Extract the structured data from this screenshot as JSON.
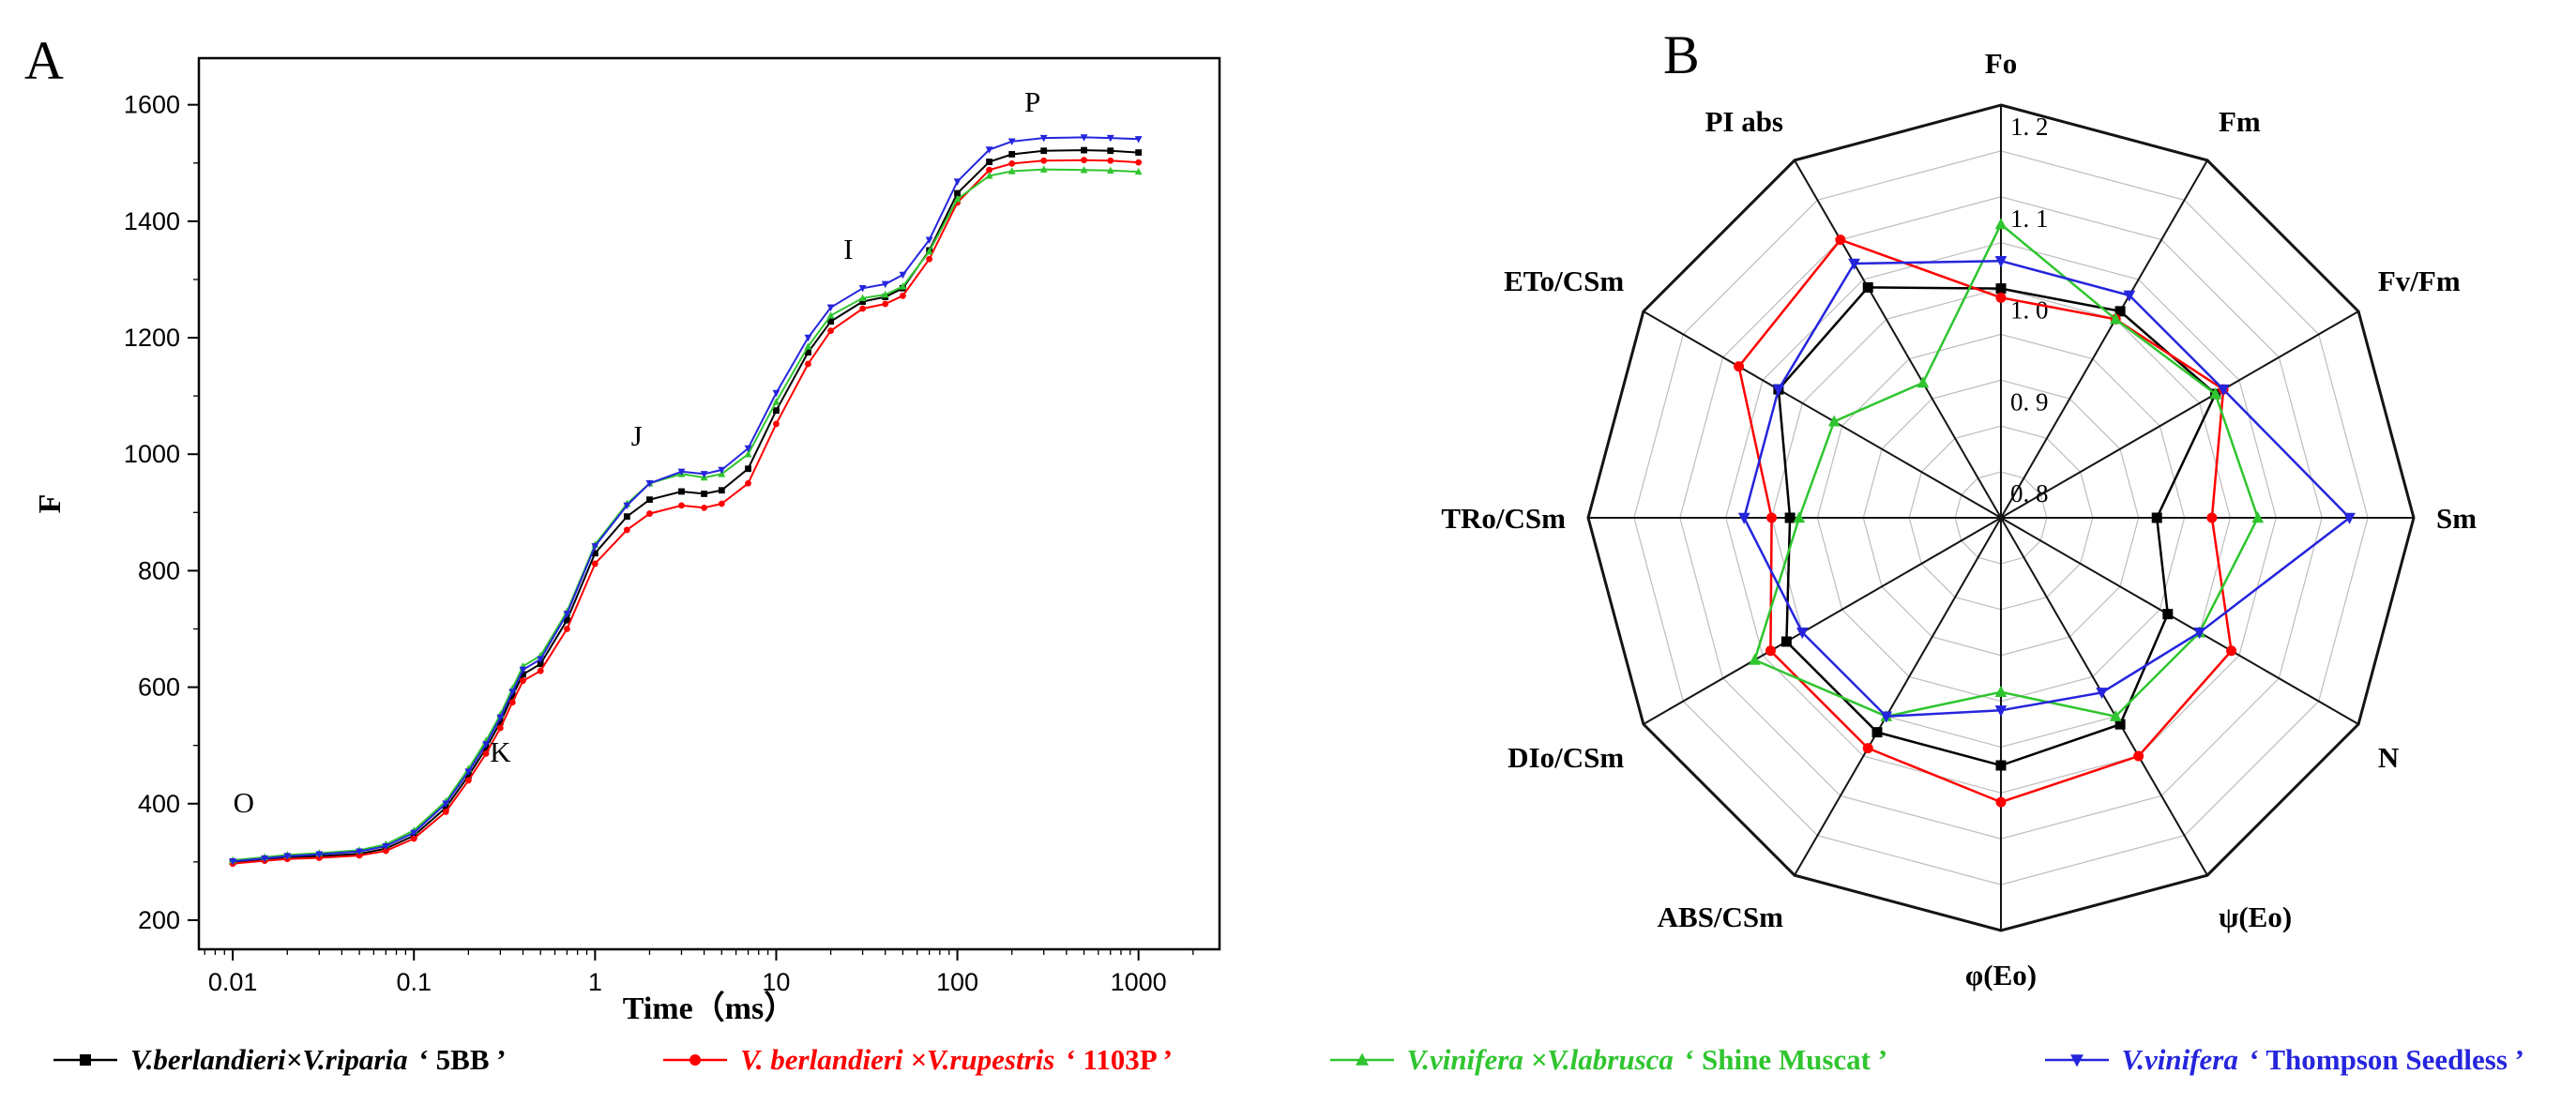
{
  "figure": {
    "panel_a_label": "A",
    "panel_b_label": "B"
  },
  "colors": {
    "series": [
      "#000000",
      "#fe0000",
      "#2fc52f",
      "#2525dd"
    ]
  },
  "legend": [
    {
      "species": "V.berlandieri×V.riparia",
      "cultivar": "‘ 5BB ’",
      "color": "#000000",
      "marker": "square"
    },
    {
      "species": "V. berlandieri ×V.rupestris",
      "cultivar": "‘ 1103P ’",
      "color": "#fe0000",
      "marker": "circle"
    },
    {
      "species": "V.vinifera ×V.labrusca",
      "cultivar": "‘ Shine Muscat ’",
      "color": "#2fc52f",
      "marker": "triangle-up"
    },
    {
      "species": "V.vinifera",
      "cultivar": "‘ Thompson Seedless ’",
      "color": "#2525dd",
      "marker": "triangle-down"
    }
  ],
  "chart_data": [
    {
      "type": "line",
      "title": "OJIP fluorescence transient",
      "xlabel": "Time（ms）",
      "ylabel": "F",
      "xscale": "log",
      "xlim": [
        0.0065,
        2800
      ],
      "ylim": [
        150,
        1680
      ],
      "xticks": [
        0.01,
        0.1,
        1,
        10,
        100,
        1000
      ],
      "xtick_labels": [
        "0.01",
        "0.1",
        "1",
        "10",
        "100",
        "1000"
      ],
      "yticks": [
        200,
        400,
        600,
        800,
        1000,
        1200,
        1400,
        1600
      ],
      "x": [
        0.01,
        0.015,
        0.02,
        0.03,
        0.05,
        0.07,
        0.1,
        0.15,
        0.2,
        0.25,
        0.3,
        0.35,
        0.4,
        0.5,
        0.7,
        1,
        1.5,
        2,
        3,
        4,
        5,
        7,
        10,
        15,
        20,
        30,
        40,
        50,
        70,
        100,
        150,
        200,
        300,
        500,
        700,
        1000
      ],
      "series": [
        {
          "name": "V.berlandieri×V.riparia ‘5BB’",
          "color": "#000000",
          "marker": "square",
          "values": [
            300,
            305,
            308,
            310,
            314,
            323,
            345,
            393,
            448,
            495,
            540,
            585,
            622,
            640,
            715,
            830,
            893,
            922,
            936,
            932,
            938,
            975,
            1075,
            1175,
            1228,
            1262,
            1270,
            1285,
            1350,
            1448,
            1502,
            1515,
            1521,
            1522,
            1521,
            1518
          ]
        },
        {
          "name": "V. berlandieri ×V.rupestris ‘1103P’",
          "color": "#fe0000",
          "marker": "circle",
          "values": [
            297,
            302,
            305,
            307,
            311,
            319,
            340,
            386,
            440,
            486,
            530,
            574,
            611,
            628,
            700,
            812,
            870,
            898,
            912,
            908,
            915,
            950,
            1052,
            1155,
            1212,
            1250,
            1258,
            1272,
            1335,
            1432,
            1488,
            1499,
            1504,
            1505,
            1504,
            1501
          ]
        },
        {
          "name": "V.vinifera ×V.labrusca ‘Shine Muscat’",
          "color": "#2fc52f",
          "marker": "triangle-up",
          "values": [
            303,
            308,
            312,
            315,
            320,
            330,
            354,
            404,
            460,
            508,
            553,
            598,
            636,
            654,
            730,
            845,
            915,
            950,
            966,
            960,
            966,
            1000,
            1090,
            1185,
            1238,
            1268,
            1274,
            1288,
            1348,
            1438,
            1478,
            1486,
            1489,
            1488,
            1487,
            1485
          ]
        },
        {
          "name": "V.vinifera ‘Thompson Seedless’",
          "color": "#2525dd",
          "marker": "triangle-down",
          "values": [
            301,
            306,
            310,
            313,
            318,
            327,
            350,
            400,
            455,
            502,
            548,
            592,
            630,
            648,
            726,
            842,
            912,
            950,
            970,
            966,
            973,
            1010,
            1105,
            1200,
            1252,
            1285,
            1292,
            1308,
            1368,
            1468,
            1523,
            1537,
            1543,
            1544,
            1543,
            1541
          ]
        }
      ],
      "annotations": [
        {
          "text": "O",
          "x": 0.0115,
          "y": 385
        },
        {
          "text": "K",
          "x": 0.3,
          "y": 472
        },
        {
          "text": "J",
          "x": 1.7,
          "y": 1015
        },
        {
          "text": "I",
          "x": 25,
          "y": 1335
        },
        {
          "text": "P",
          "x": 260,
          "y": 1588
        }
      ]
    },
    {
      "type": "radar",
      "categories": [
        "Fo",
        "Fm",
        "Fv/Fm",
        "Sm",
        "N",
        "ψ(Eo)",
        "φ(Eo)",
        "ABS/CSm",
        "DIo/CSm",
        "TRo/CSm",
        "ETo/CSm",
        "PI abs"
      ],
      "rmin": 0.75,
      "rmax": 1.2,
      "ring_min": 0.8,
      "ring_step": 0.05,
      "tick_values": [
        0.8,
        0.9,
        1.0,
        1.1,
        1.2
      ],
      "tick_labels": [
        "0. 8",
        "0. 9",
        "1. 0",
        "1. 1",
        "1. 2"
      ],
      "series": [
        {
          "name": "V.berlandieri×V.riparia ‘5BB’",
          "color": "#000000",
          "marker": "square",
          "values": [
            1.0,
            1.01,
            1.02,
            0.92,
            0.96,
            1.01,
            1.02,
            1.02,
            1.02,
            0.98,
            1.03,
            1.04
          ]
        },
        {
          "name": "V. berlandieri ×V.rupestris ‘1103P’",
          "color": "#fe0000",
          "marker": "circle",
          "values": [
            0.99,
            1.0,
            1.03,
            0.98,
            1.04,
            1.05,
            1.06,
            1.04,
            1.04,
            1.0,
            1.08,
            1.1
          ]
        },
        {
          "name": "V.vinifera ×V.labrusca ‘Shine Muscat’",
          "color": "#2fc52f",
          "marker": "triangle-up",
          "values": [
            1.07,
            1.0,
            1.02,
            1.03,
            1.0,
            1.0,
            0.94,
            1.0,
            1.06,
            0.97,
            0.96,
            0.92
          ]
        },
        {
          "name": "V.vinifera ‘Thompson Seedless’",
          "color": "#2525dd",
          "marker": "triangle-down",
          "values": [
            1.03,
            1.03,
            1.03,
            1.13,
            1.0,
            0.97,
            0.96,
            1.0,
            1.0,
            1.03,
            1.03,
            1.07
          ]
        }
      ]
    }
  ]
}
